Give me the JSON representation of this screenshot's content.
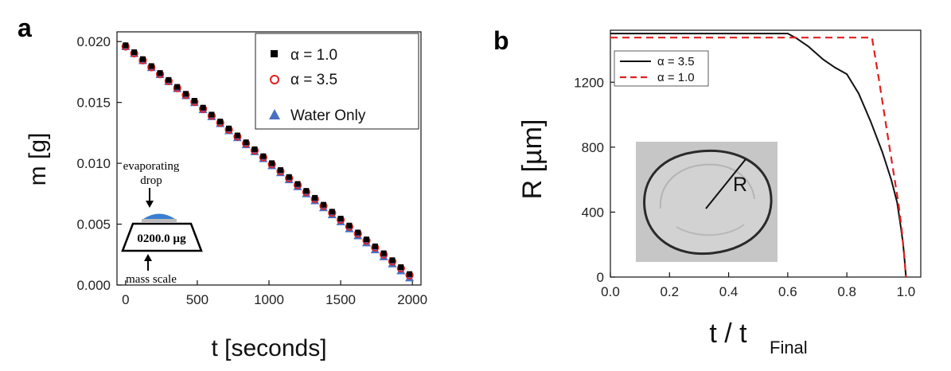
{
  "chart_data": [
    {
      "panel_label": "a",
      "type": "scatter",
      "xlabel": "t [seconds]",
      "ylabel": "m [g]",
      "xlim": [
        -60,
        2060
      ],
      "ylim": [
        0.0,
        0.0208
      ],
      "xticks": [
        "0",
        "500",
        "1000",
        "1500",
        "2000"
      ],
      "xtick_values": [
        0,
        500,
        1000,
        1500,
        2000
      ],
      "yticks": [
        "0.000",
        "0.005",
        "0.010",
        "0.015",
        "0.020"
      ],
      "ytick_values": [
        0.0,
        0.005,
        0.01,
        0.015,
        0.02
      ],
      "legend_position": "top-right",
      "series": [
        {
          "name": "α = 1.0",
          "marker": "square",
          "color": "#000000",
          "m0": 0.0197,
          "m1": 0.0009
        },
        {
          "name": "α = 3.5",
          "marker": "circle",
          "color": "#e02020",
          "m0": 0.0196,
          "m1": 0.0008
        },
        {
          "name": "Water Only",
          "marker": "triangle",
          "color": "#4a6fc3",
          "m0": 0.0196,
          "m1": 0.0006
        }
      ],
      "x_start": 0,
      "x_step": 60,
      "x_count": 34,
      "inset": {
        "top_label_1": "evaporating",
        "top_label_2": "drop",
        "readout": "0200.0 µg",
        "bottom_label": "mass scale"
      }
    },
    {
      "panel_label": "b",
      "type": "line",
      "xlabel_main": "t / t",
      "xlabel_sub": "Final",
      "ylabel": "R [µm]",
      "xlim": [
        0.0,
        1.05
      ],
      "ylim": [
        0,
        1520
      ],
      "xticks": [
        "0.0",
        "0.2",
        "0.4",
        "0.6",
        "0.8",
        "1.0"
      ],
      "xtick_values": [
        0.0,
        0.2,
        0.4,
        0.6,
        0.8,
        1.0
      ],
      "yticks": [
        "0",
        "400",
        "800",
        "1200"
      ],
      "ytick_values": [
        0,
        400,
        800,
        1200
      ],
      "legend_position": "top-left",
      "series": [
        {
          "name": "α = 3.5",
          "style": "solid",
          "color": "#111111",
          "x": [
            0.0,
            0.6,
            0.63,
            0.67,
            0.72,
            0.76,
            0.8,
            0.84,
            0.88,
            0.92,
            0.95,
            0.97,
            0.98,
            0.99,
            0.995,
            1.0
          ],
          "y": [
            1500,
            1500,
            1470,
            1420,
            1340,
            1290,
            1250,
            1130,
            960,
            770,
            600,
            460,
            340,
            210,
            110,
            0
          ]
        },
        {
          "name": "α = 1.0",
          "style": "dashed",
          "color": "#e02020",
          "x": [
            0.0,
            0.885,
            0.91,
            0.94,
            0.96,
            0.975,
            0.985,
            0.993,
            1.0
          ],
          "y": [
            1475,
            1475,
            1200,
            850,
            620,
            450,
            300,
            150,
            0
          ]
        }
      ],
      "inset_label": "R"
    }
  ]
}
